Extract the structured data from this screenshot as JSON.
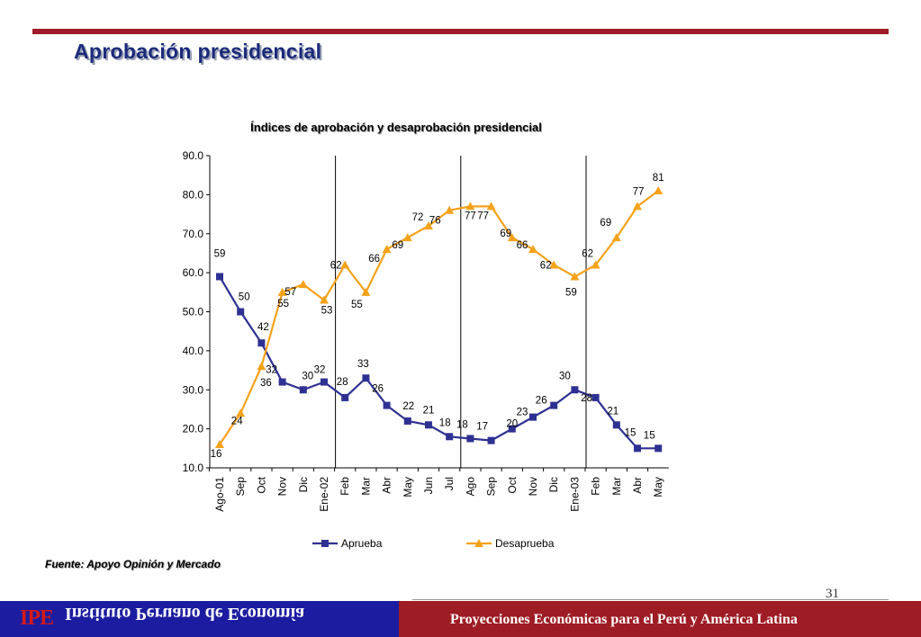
{
  "slide": {
    "title": "Aprobación presidencial",
    "source": "Fuente: Apoyo Opinión y Mercado",
    "page_number": "31"
  },
  "footer": {
    "logo": "IPE",
    "institute": "Instituto Peruano de Economía",
    "tagline": "Proyecciones Económicas para el Perú y América Latina"
  },
  "colors": {
    "aprueba": "#2e3192",
    "desaprueba": "#f5a21b",
    "accent_red": "#a01c2a",
    "footer_blue": "#1c1ca0"
  },
  "chart_data": {
    "type": "line",
    "title": "Índices de aprobación y desaprobación presidencial",
    "xlabel": "",
    "ylabel": "",
    "ylim": [
      10,
      90
    ],
    "yticks": [
      "10.0",
      "20.0",
      "30.0",
      "40.0",
      "50.0",
      "60.0",
      "70.0",
      "80.0",
      "90.0"
    ],
    "categories": [
      "Ago-01",
      "Sep",
      "Oct",
      "Nov",
      "Dic",
      "Ene-02",
      "Feb",
      "Mar",
      "Abr",
      "May",
      "Jun",
      "Jul",
      "Ago",
      "Sep",
      "Oct",
      "Nov",
      "Dic",
      "Ene-03",
      "Feb",
      "Mar",
      "Abr",
      "May"
    ],
    "grid": false,
    "legend_position": "bottom",
    "separators_after_category": [
      "Ene-02",
      "Jul",
      "Ene-03"
    ],
    "series": [
      {
        "name": "Aprueba",
        "marker": "square",
        "values": [
          59,
          50,
          42,
          32,
          30,
          32,
          28,
          33,
          26,
          22,
          21,
          18,
          17.5,
          17,
          20,
          23,
          26,
          30,
          28,
          21,
          15,
          15
        ],
        "labels": [
          "59",
          "50",
          "42",
          "32",
          "30",
          "32",
          "28",
          "33",
          "26",
          "22",
          "21",
          "18",
          "18",
          "17",
          "20",
          "23",
          "26",
          "30",
          "28",
          "21",
          "15",
          "15"
        ]
      },
      {
        "name": "Desaprueba",
        "marker": "triangle",
        "values": [
          16,
          24,
          36,
          55,
          57,
          53,
          62,
          55,
          66,
          69,
          72,
          76,
          77,
          77,
          69,
          66,
          62,
          59,
          62,
          69,
          77,
          81
        ],
        "labels": [
          "16",
          "24",
          "36",
          "55",
          "57",
          "53",
          "62",
          "55",
          "66",
          "69",
          "72",
          "76",
          "77",
          "77",
          "69",
          "66",
          "62",
          "59",
          "62",
          "69",
          "77",
          "81"
        ]
      }
    ]
  }
}
